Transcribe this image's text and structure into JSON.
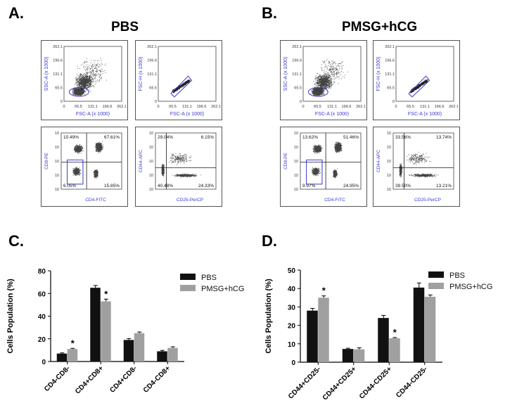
{
  "labels": {
    "A": "A.",
    "B": "B.",
    "C": "C.",
    "D": "D.",
    "group_pbs": "PBS",
    "group_hcg": "PMSG+hCG"
  },
  "colors": {
    "pbs": "#111111",
    "hcg": "#a0a0a0",
    "gate": "#3a3ad0",
    "quad": "#1a1a1a",
    "dot": "#222222"
  },
  "flow_axes": {
    "ssc_y": "SSC-A (x 1000)",
    "fsc_x": "FSC-A (x 1000)",
    "fsch_y": "FSC-H (x 1000)",
    "cd8_y": "CD8-PE",
    "cd4_x": "CD4-FITC",
    "cd44_y": "CD44-APC",
    "cd25_x": "CD25-PerCP",
    "scatter_ticks": [
      "0",
      "65.5",
      "131.1",
      "196.6",
      "262.1"
    ]
  },
  "flow": {
    "pbs": {
      "cd4cd8": {
        "ul": "10.49%",
        "ur": "67.61%",
        "ll": "6.05%",
        "lr": "15.85%"
      },
      "cd44cd25": {
        "ul": "29.04%",
        "ur": "6.15%",
        "ll": "40.48%",
        "lr": "24.33%"
      }
    },
    "hcg": {
      "cd4cd8": {
        "ul": "13.62%",
        "ur": "51.46%",
        "ll": "9.97%",
        "lr": "24.95%"
      },
      "cd44cd25": {
        "ul": "33.56%",
        "ur": "13.74%",
        "ll": "39.50%",
        "lr": "13.21%"
      }
    }
  },
  "chart_data": [
    {
      "type": "bar",
      "panel": "C",
      "categories": [
        "CD4-CD8-",
        "CD4+CD8+",
        "CD4+CD8-",
        "CD4-CD8+"
      ],
      "series": [
        {
          "name": "PBS",
          "values": [
            7,
            65,
            19,
            9
          ],
          "errors": [
            0.6,
            2.0,
            1.2,
            0.8
          ]
        },
        {
          "name": "PMSG+hCG",
          "values": [
            11,
            53,
            25,
            12
          ],
          "errors": [
            0.6,
            2.0,
            1.0,
            1.0
          ]
        }
      ],
      "significance": [
        {
          "category": "CD4-CD8-",
          "series": "PMSG+hCG",
          "mark": "*"
        },
        {
          "category": "CD4+CD8+",
          "series": "PMSG+hCG",
          "mark": "*"
        }
      ],
      "ylabel": "Cells Population (%)",
      "ylim": [
        0,
        80
      ],
      "yticks": [
        "0",
        "20",
        "40",
        "60",
        "80"
      ],
      "legend": "top-right"
    },
    {
      "type": "bar",
      "panel": "D",
      "categories": [
        "CD44+CD25-",
        "CD44+CD25+",
        "CD44-CD25+",
        "CD44-CD25-"
      ],
      "series": [
        {
          "name": "PBS",
          "values": [
            28,
            7.2,
            24,
            40.5
          ],
          "errors": [
            1.2,
            0.4,
            1.4,
            2.5
          ]
        },
        {
          "name": "PMSG+hCG",
          "values": [
            35,
            7,
            13,
            35.5
          ],
          "errors": [
            1.0,
            0.8,
            0.4,
            1.0
          ]
        }
      ],
      "significance": [
        {
          "category": "CD44+CD25-",
          "series": "PMSG+hCG",
          "mark": "*"
        },
        {
          "category": "CD44-CD25+",
          "series": "PMSG+hCG",
          "mark": "*"
        }
      ],
      "ylabel": "Cells Population (%)",
      "ylim": [
        0,
        50
      ],
      "yticks": [
        "0",
        "10",
        "20",
        "30",
        "40",
        "50"
      ],
      "legend": "top-right"
    }
  ]
}
